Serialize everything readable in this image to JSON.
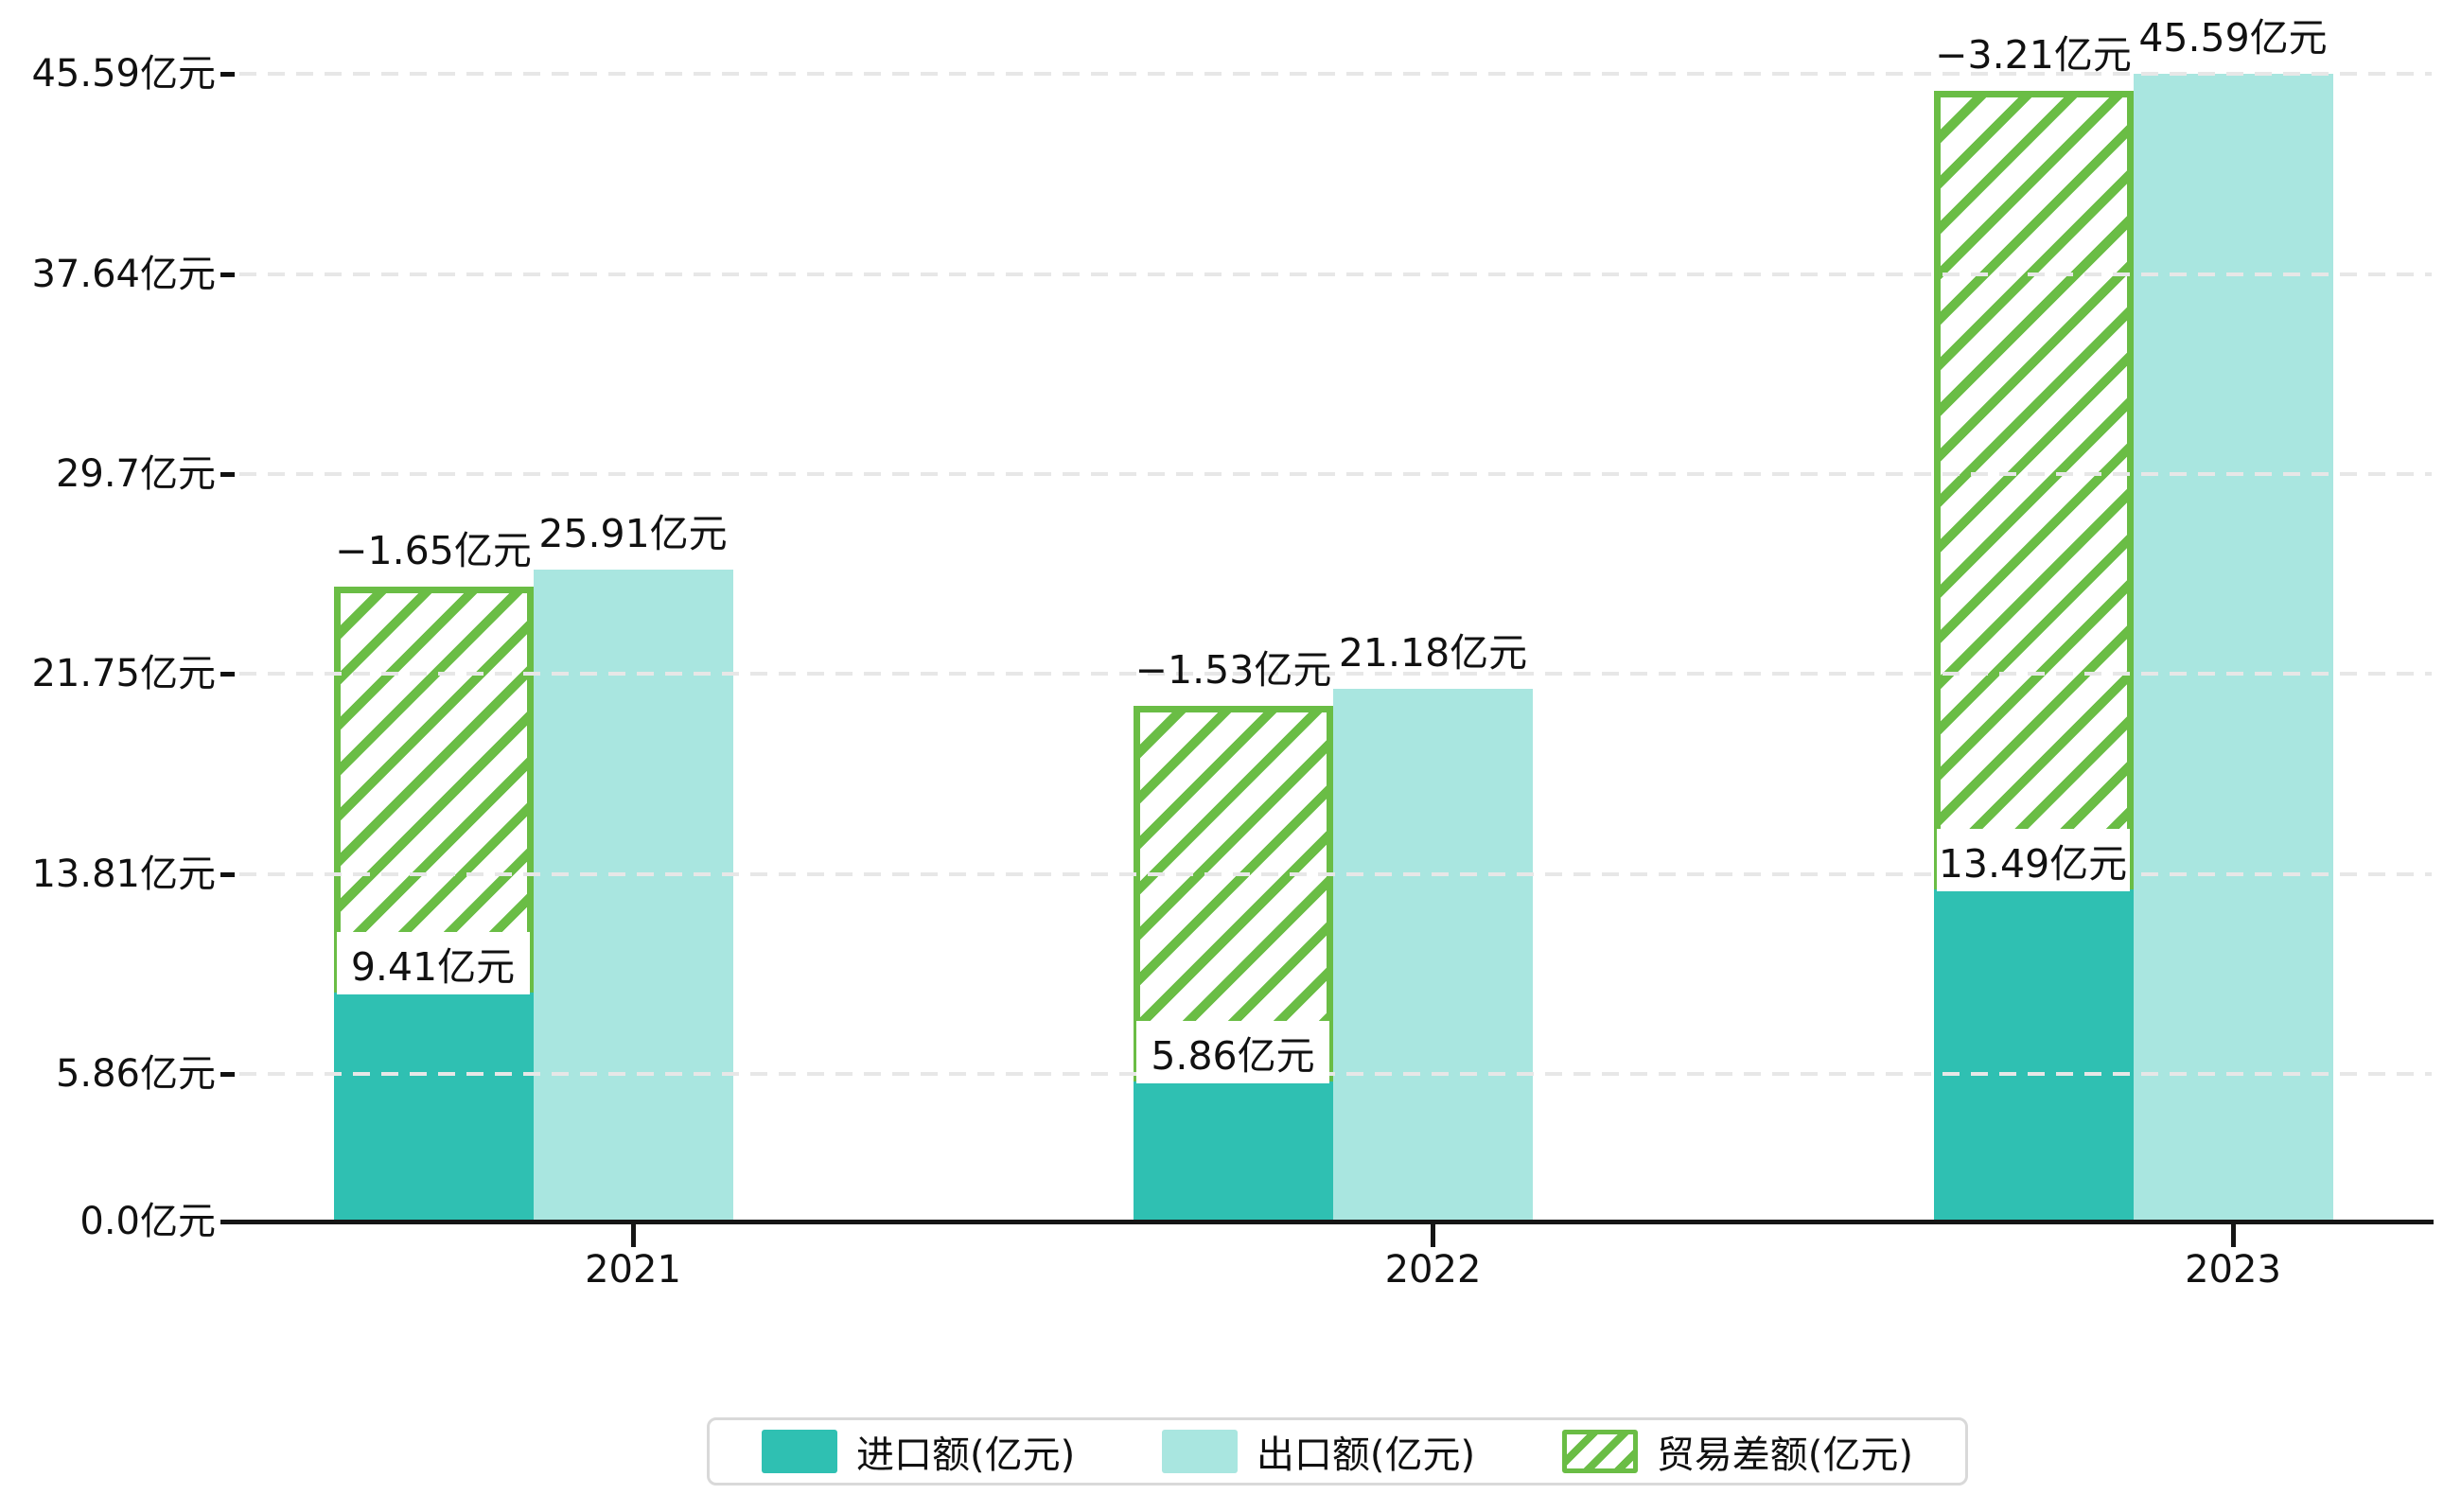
{
  "chart_data": {
    "type": "bar",
    "title": "",
    "categories": [
      "2021",
      "2022",
      "2023"
    ],
    "series": [
      {
        "name": "进口额(亿元)",
        "style": "solid",
        "color": "#2fc0b2",
        "values": [
          9.41,
          5.86,
          13.49
        ],
        "labels": [
          "9.41亿元",
          "5.86亿元",
          "13.49亿元"
        ]
      },
      {
        "name": "出口额(亿元)",
        "style": "solid",
        "color": "#a9e6e0",
        "values": [
          25.91,
          21.18,
          45.59
        ],
        "labels": [
          "25.91亿元",
          "21.18亿元",
          "45.59亿元"
        ]
      },
      {
        "name": "贸易差额(亿元)",
        "style": "hatched-green-on-white",
        "color": "#6abd45",
        "values": [
          -1.65,
          -1.53,
          -3.21
        ],
        "labels": [
          "−1.65亿元",
          "−1.53亿元",
          "−3.21亿元"
        ],
        "render_note": "floating hatched bar spanning from import value up to export value, drawn over the import slot"
      }
    ],
    "y_ticks": [
      {
        "value": 0,
        "label": "0.0亿元"
      },
      {
        "value": 5.86,
        "label": "5.86亿元"
      },
      {
        "value": 13.81,
        "label": "13.81亿元"
      },
      {
        "value": 21.75,
        "label": "21.75亿元"
      },
      {
        "value": 29.7,
        "label": "29.7亿元"
      },
      {
        "value": 37.64,
        "label": "37.64亿元"
      },
      {
        "value": 45.59,
        "label": "45.59亿元"
      }
    ],
    "ylim": [
      0,
      47.2
    ],
    "grid": "horizontal-dashed",
    "legend_position": "bottom-center",
    "colors": {
      "import": "#2fc0b2",
      "export": "#a9e6e0",
      "trade_balance": "#6abd45",
      "gridline": "#e7e7e7",
      "axis": "#151515",
      "text": "#111111"
    }
  }
}
